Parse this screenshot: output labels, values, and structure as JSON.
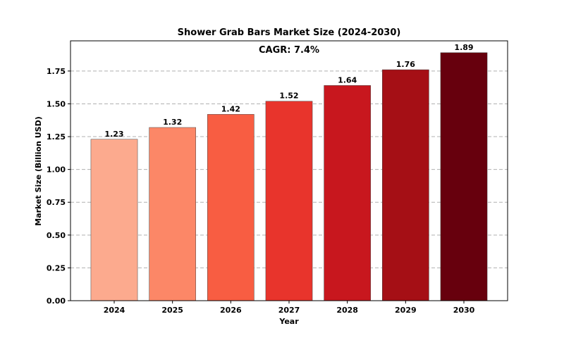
{
  "chart_data": {
    "type": "bar",
    "title": "Shower Grab Bars Market Size (2024-2030)",
    "annotation": "CAGR: 7.4%",
    "xlabel": "Year",
    "ylabel": "Market Size (Billion USD)",
    "categories": [
      "2024",
      "2025",
      "2026",
      "2027",
      "2028",
      "2029",
      "2030"
    ],
    "values": [
      1.23,
      1.32,
      1.42,
      1.52,
      1.64,
      1.76,
      1.89
    ],
    "value_labels": [
      "1.23",
      "1.32",
      "1.42",
      "1.52",
      "1.64",
      "1.76",
      "1.89"
    ],
    "ylim": [
      0,
      1.98
    ],
    "yticks": [
      0.0,
      0.25,
      0.5,
      0.75,
      1.0,
      1.25,
      1.5,
      1.75
    ],
    "ytick_labels": [
      "0.00",
      "0.25",
      "0.50",
      "0.75",
      "1.00",
      "1.25",
      "1.50",
      "1.75"
    ],
    "grid": "y-dashed",
    "bar_colors": [
      "#fcaa8e",
      "#fc8767",
      "#f85d42",
      "#e8342c",
      "#c8171e",
      "#a50f15",
      "#67000d"
    ]
  }
}
